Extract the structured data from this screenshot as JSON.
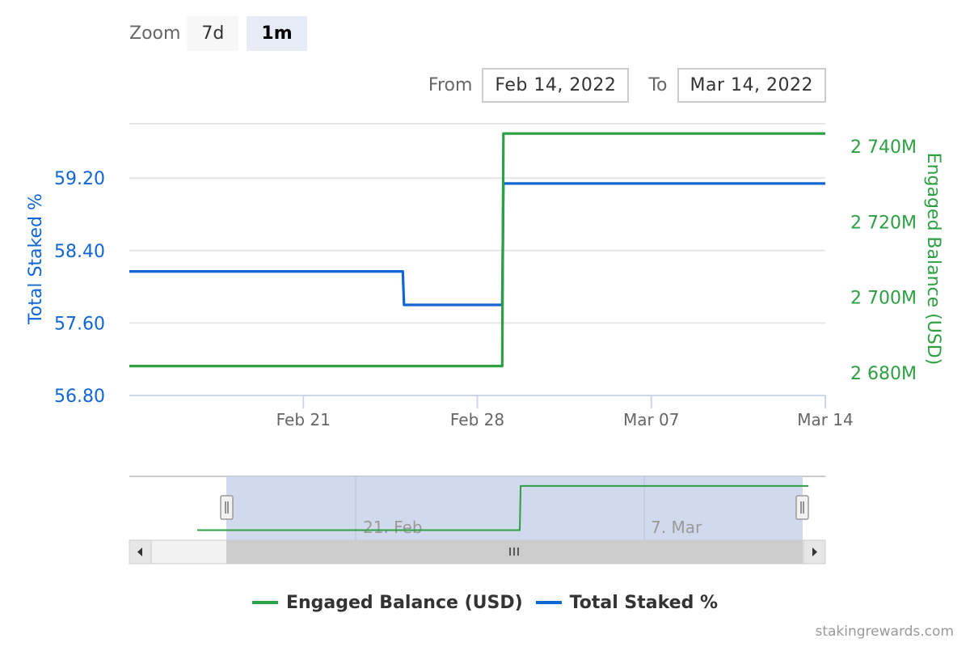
{
  "zoom": {
    "label": "Zoom",
    "buttons": [
      {
        "label": "7d"
      },
      {
        "label": "1m"
      }
    ],
    "active": "1m"
  },
  "range_selector": {
    "from_label": "From",
    "from_value": "Feb 14, 2022",
    "to_label": "To",
    "to_value": "Mar 14, 2022"
  },
  "credits": "stakingrewards.com",
  "colors": {
    "staked": "#1066d4",
    "engaged": "#2ea043",
    "grid": "#e6e6e6",
    "navigator_mask": "#ccd6eb"
  },
  "legend": [
    {
      "name": "Engaged Balance (USD)",
      "color": "#2ea043"
    },
    {
      "name": "Total Staked %",
      "color": "#1066d4"
    }
  ],
  "chart_data": {
    "type": "line",
    "x_range": [
      "2022-02-14",
      "2022-03-14"
    ],
    "x_ticks": [
      {
        "date": "2022-02-21",
        "label": "Feb 21"
      },
      {
        "date": "2022-02-28",
        "label": "Feb 28"
      },
      {
        "date": "2022-03-07",
        "label": "Mar 07"
      },
      {
        "date": "2022-03-14",
        "label": "Mar 14"
      }
    ],
    "y_left": {
      "label": "Total Staked %",
      "range": [
        56.8,
        59.8
      ],
      "ticks": [
        "56.80",
        "57.60",
        "58.40",
        "59.20"
      ]
    },
    "y_right": {
      "label": "Engaged Balance (USD)",
      "range": [
        2674,
        2746
      ],
      "ticks": [
        "2 680M",
        "2 700M",
        "2 720M",
        "2 740M"
      ]
    },
    "series": [
      {
        "name": "Total Staked %",
        "axis": "left",
        "points": [
          [
            "2022-02-14",
            58.17
          ],
          [
            "2022-02-25",
            58.17
          ],
          [
            "2022-02-25",
            57.8
          ],
          [
            "2022-03-01",
            57.8
          ],
          [
            "2022-03-01",
            59.14
          ],
          [
            "2022-03-14",
            59.14
          ]
        ]
      },
      {
        "name": "Engaged Balance (USD)",
        "axis": "right",
        "points": [
          [
            "2022-02-14",
            2681.8
          ],
          [
            "2022-03-01",
            2681.8
          ],
          [
            "2022-03-01",
            2743.4
          ],
          [
            "2022-03-14",
            2743.4
          ]
        ]
      }
    ],
    "grid": true,
    "legend_position": "bottom-center"
  },
  "navigator": {
    "labels": [
      "21. Feb",
      "7. Mar"
    ],
    "series": {
      "name": "Engaged Balance (USD)",
      "points": [
        [
          "2022-02-10",
          2681.8
        ],
        [
          "2022-03-01",
          2681.8
        ],
        [
          "2022-03-01",
          2743.4
        ],
        [
          "2022-03-18",
          2743.4
        ]
      ]
    }
  }
}
